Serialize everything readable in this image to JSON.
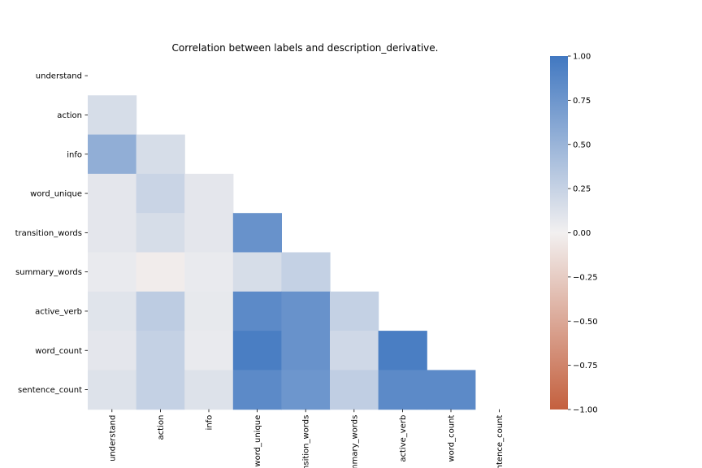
{
  "chart_data": {
    "type": "heatmap",
    "title": "Correlation between labels and description_derivative.",
    "labels": [
      "understand",
      "action",
      "info",
      "word_unique",
      "transition_words",
      "summary_words",
      "active_verb",
      "word_count",
      "sentence_count"
    ],
    "mask": "upper-triangle-and-diagonal",
    "colorbar": {
      "min": -1.0,
      "max": 1.0,
      "ticks": [
        1.0,
        0.75,
        0.5,
        0.25,
        0.0,
        -0.25,
        -0.5,
        -0.75,
        -1.0
      ],
      "tick_labels": [
        "1.00",
        "0.75",
        "0.50",
        "0.25",
        "0.00",
        "−0.25",
        "−0.50",
        "−0.75",
        "−1.00"
      ],
      "low_color": "#c4603e",
      "mid_color": "#f2f0f0",
      "high_color": "#4178c1"
    },
    "values": [
      [
        null,
        null,
        null,
        null,
        null,
        null,
        null,
        null,
        null
      ],
      [
        0.16,
        null,
        null,
        null,
        null,
        null,
        null,
        null,
        null
      ],
      [
        0.55,
        0.16,
        null,
        null,
        null,
        null,
        null,
        null,
        null
      ],
      [
        0.08,
        0.23,
        0.08,
        null,
        null,
        null,
        null,
        null,
        null
      ],
      [
        0.08,
        0.16,
        0.08,
        0.78,
        null,
        null,
        null,
        null,
        null
      ],
      [
        0.05,
        -0.03,
        0.05,
        0.16,
        0.26,
        null,
        null,
        null,
        null
      ],
      [
        0.1,
        0.3,
        0.06,
        0.85,
        0.78,
        0.26,
        null,
        null,
        null
      ],
      [
        0.08,
        0.26,
        0.05,
        0.95,
        0.78,
        0.2,
        0.95,
        null,
        null
      ],
      [
        0.12,
        0.26,
        0.12,
        0.85,
        0.75,
        0.28,
        0.85,
        0.85,
        null
      ]
    ]
  }
}
